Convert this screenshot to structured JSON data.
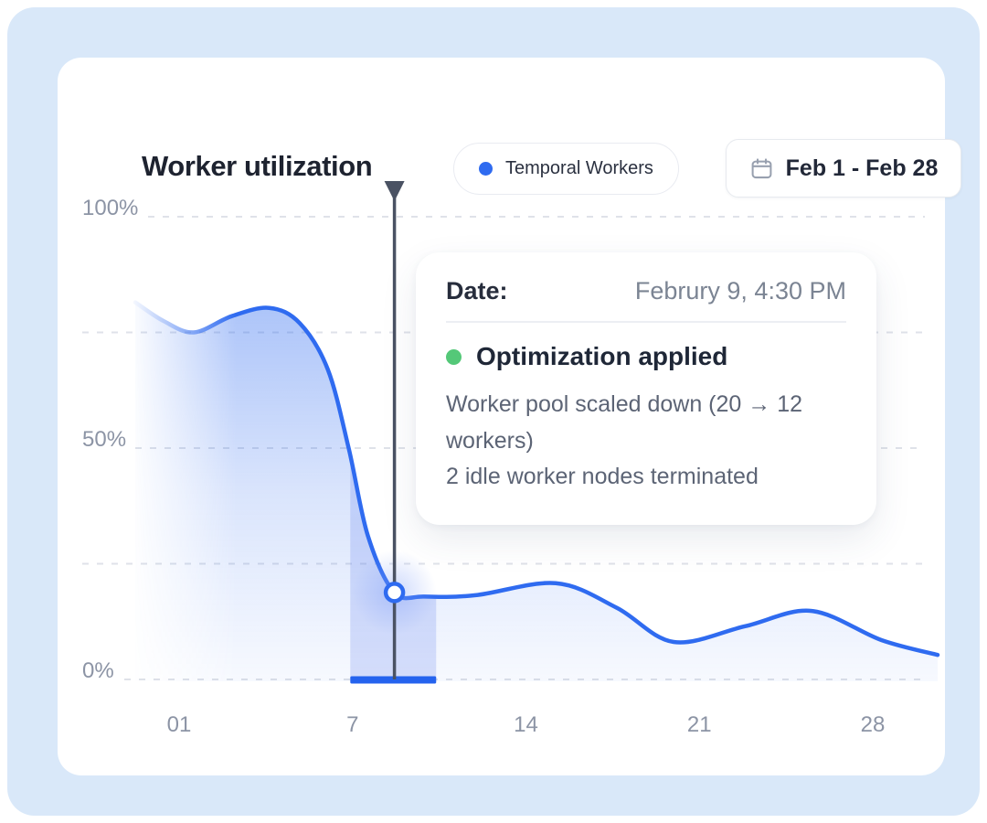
{
  "header": {
    "title": "Worker utilization",
    "legend": {
      "label": "Temporal Workers",
      "dot_color": "#2f6bf0"
    },
    "date_range": {
      "label": "Feb 1 - Feb 28"
    }
  },
  "tooltip": {
    "date_label": "Date:",
    "date_value": "Februry 9, 4:30 PM",
    "event_label": "Optimization applied",
    "event_dot_color": "#54c878",
    "details": [
      "Worker pool scaled down (20 → 12 workers)",
      "2 idle worker nodes terminated"
    ]
  },
  "chart_data": {
    "type": "area",
    "title": "Worker utilization",
    "series_name": "Temporal Workers",
    "unit": "%",
    "ylim": [
      0,
      100
    ],
    "grid": "dashed-horizontal",
    "grid_values": [
      0,
      25,
      50,
      75,
      100
    ],
    "y_ticks": [
      {
        "value": 100,
        "label": "100%"
      },
      {
        "value": 50,
        "label": "50%"
      },
      {
        "value": 0,
        "label": "0%"
      }
    ],
    "x_ticks": [
      {
        "day": 1,
        "label": "01"
      },
      {
        "day": 7,
        "label": "7"
      },
      {
        "day": 14,
        "label": "14"
      },
      {
        "day": 21,
        "label": "21"
      },
      {
        "day": 28,
        "label": "28"
      }
    ],
    "values_by_day": [
      76,
      76,
      78,
      80,
      80,
      75,
      60,
      41,
      23,
      18,
      18,
      18.5,
      19,
      20,
      21,
      20.5,
      18.5,
      15,
      12,
      8.5,
      8,
      10,
      12.5,
      14,
      14.5,
      15,
      13,
      10
    ],
    "curve": [
      [
        0.0,
        81.5
      ],
      [
        0.035,
        77.5
      ],
      [
        0.073,
        75.0
      ],
      [
        0.12,
        78.5
      ],
      [
        0.167,
        80.3
      ],
      [
        0.205,
        77.0
      ],
      [
        0.24,
        67.0
      ],
      [
        0.266,
        50.0
      ],
      [
        0.29,
        31.0
      ],
      [
        0.323,
        18.8
      ],
      [
        0.36,
        17.9
      ],
      [
        0.424,
        18.2
      ],
      [
        0.524,
        20.8
      ],
      [
        0.6,
        15.5
      ],
      [
        0.671,
        8.1
      ],
      [
        0.76,
        11.5
      ],
      [
        0.843,
        14.8
      ],
      [
        0.93,
        8.5
      ],
      [
        1.0,
        5.3
      ]
    ],
    "marker": {
      "t": 0.323,
      "pct": 18.8,
      "date": "Februry 9, 4:30 PM"
    },
    "band": {
      "t0": 0.268,
      "t1": 0.375
    },
    "colors": {
      "line": "#2f6bf0",
      "marker_line": "#4a5263",
      "grid": "#dfe2e9",
      "band_bar": "#2563ee",
      "band_fill": "#5a7cee"
    }
  }
}
